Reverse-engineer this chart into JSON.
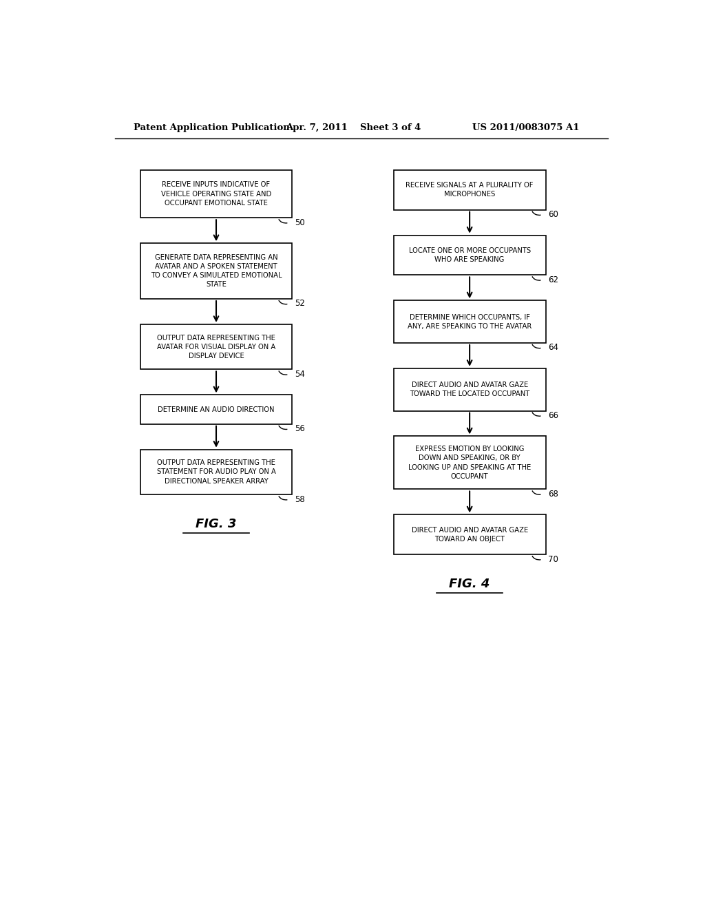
{
  "bg_color": "#ffffff",
  "header_text": "Patent Application Publication",
  "header_date": "Apr. 7, 2011",
  "header_sheet": "Sheet 3 of 4",
  "header_patent": "US 2011/0083075 A1",
  "fig3_label": "FIG. 3",
  "fig4_label": "FIG. 4",
  "fig3_boxes": [
    {
      "text": "RECEIVE INPUTS INDICATIVE OF\nVEHICLE OPERATING STATE AND\nOCCUPANT EMOTIONAL STATE",
      "label": "50"
    },
    {
      "text": "GENERATE DATA REPRESENTING AN\nAVATAR AND A SPOKEN STATEMENT\nTO CONVEY A SIMULATED EMOTIONAL\nSTATE",
      "label": "52"
    },
    {
      "text": "OUTPUT DATA REPRESENTING THE\nAVATAR FOR VISUAL DISPLAY ON A\nDISPLAY DEVICE",
      "label": "54"
    },
    {
      "text": "DETERMINE AN AUDIO DIRECTION",
      "label": "56"
    },
    {
      "text": "OUTPUT DATA REPRESENTING THE\nSTATEMENT FOR AUDIO PLAY ON A\nDIRECTIONAL SPEAKER ARRAY",
      "label": "58"
    }
  ],
  "fig4_boxes": [
    {
      "text": "RECEIVE SIGNALS AT A PLURALITY OF\nMICROPHONES",
      "label": "60"
    },
    {
      "text": "LOCATE ONE OR MORE OCCUPANTS\nWHO ARE SPEAKING",
      "label": "62"
    },
    {
      "text": "DETERMINE WHICH OCCUPANTS, IF\nANY, ARE SPEAKING TO THE AVATAR",
      "label": "64"
    },
    {
      "text": "DIRECT AUDIO AND AVATAR GAZE\nTOWARD THE LOCATED OCCUPANT",
      "label": "66"
    },
    {
      "text": "EXPRESS EMOTION BY LOOKING\nDOWN AND SPEAKING, OR BY\nLOOKING UP AND SPEAKING AT THE\nOCCUPANT",
      "label": "68"
    },
    {
      "text": "DIRECT AUDIO AND AVATAR GAZE\nTOWARD AN OBJECT",
      "label": "70"
    }
  ]
}
